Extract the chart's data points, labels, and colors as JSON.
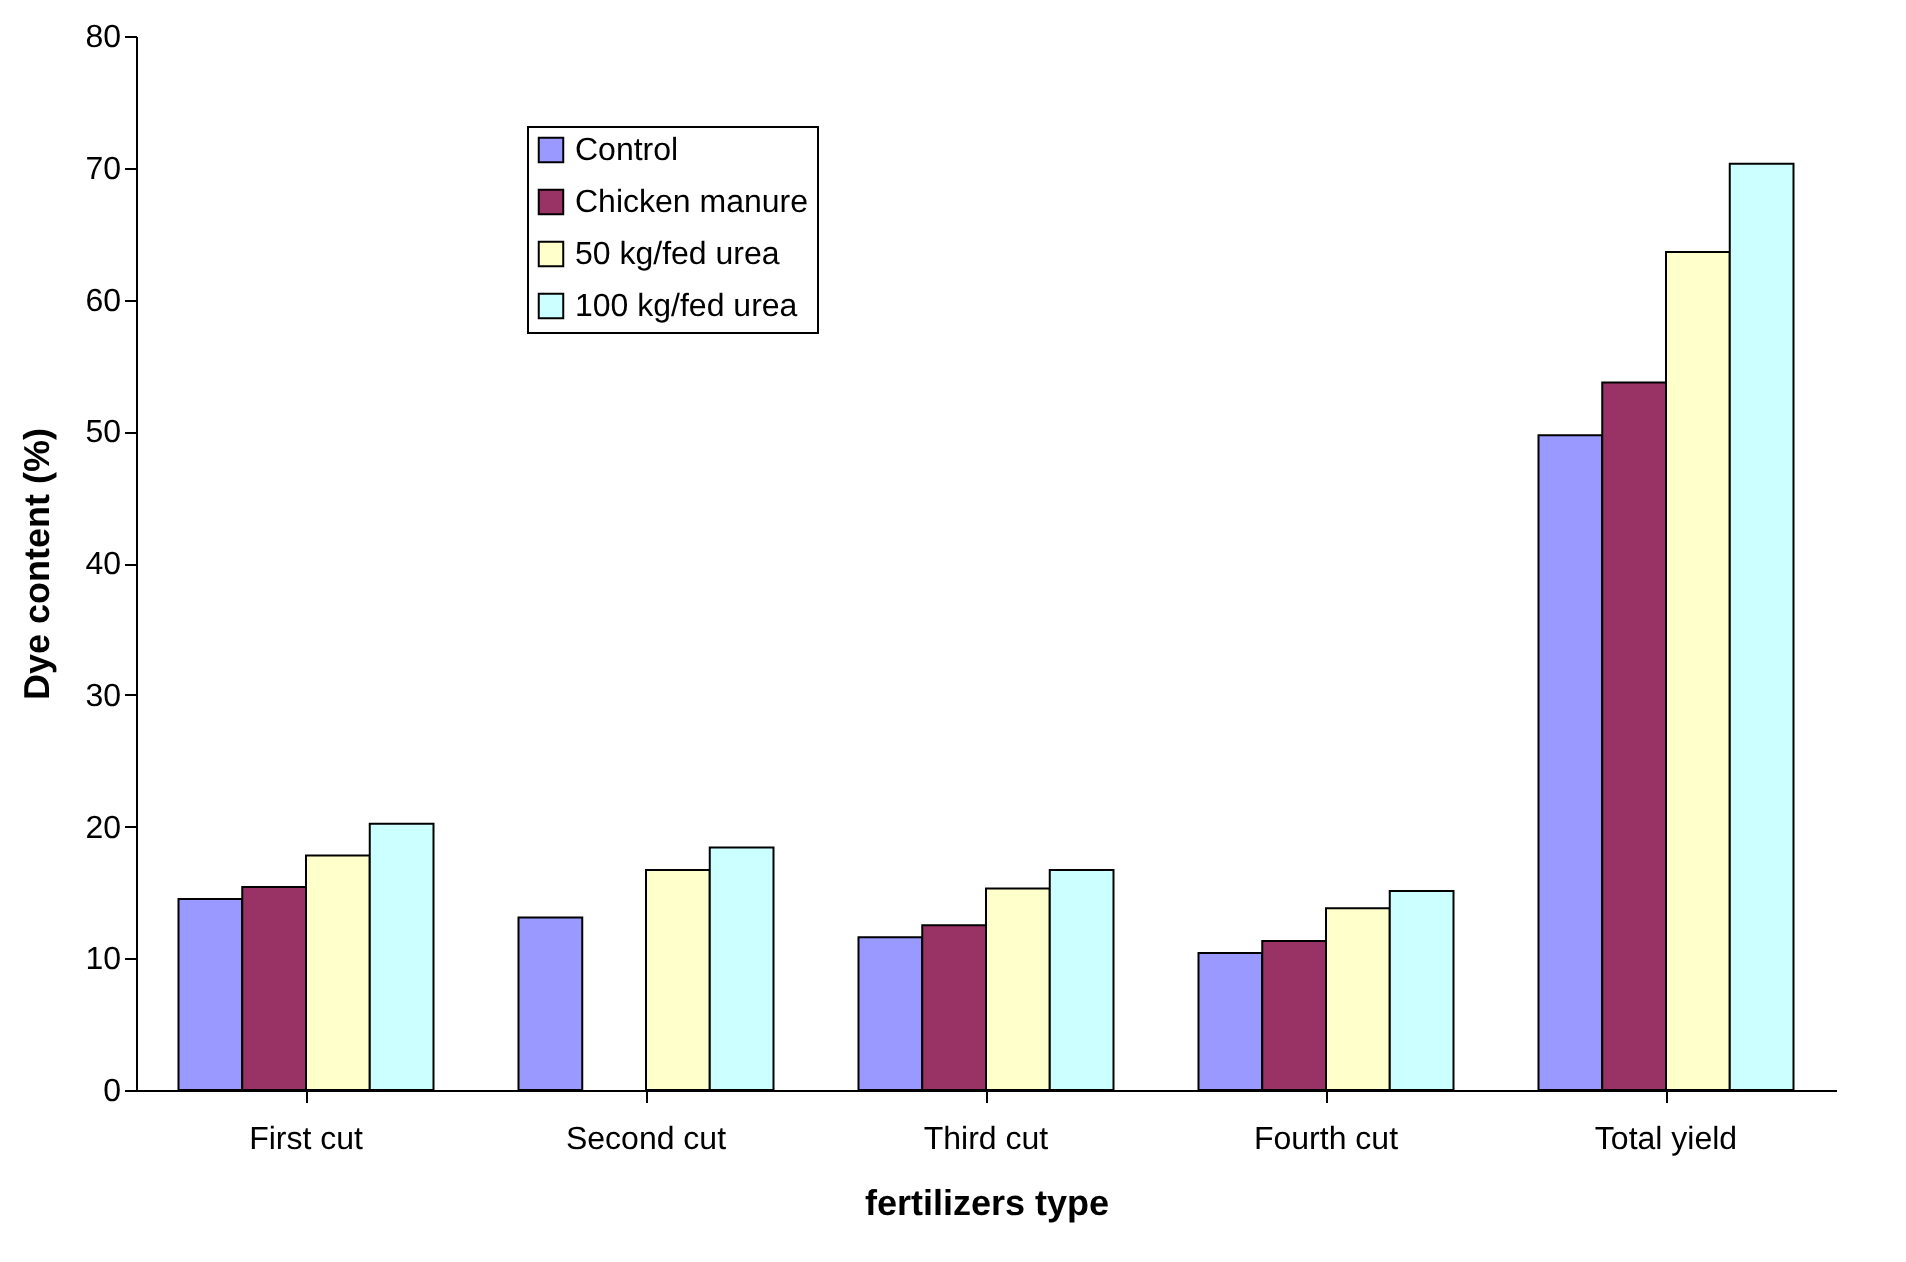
{
  "chart_data": {
    "type": "bar",
    "xlabel": "fertilizers type",
    "ylabel": "Dye content (%)",
    "categories": [
      "First cut",
      "Second cut",
      "Third cut",
      "Fourth cut",
      "Total yield"
    ],
    "series": [
      {
        "name": "Control",
        "color": "#9999ff",
        "values": [
          14.5,
          13.1,
          11.6,
          10.4,
          49.7
        ]
      },
      {
        "name": "Chicken manure",
        "color": "#993366",
        "values": [
          15.4,
          null,
          12.5,
          11.3,
          53.7
        ]
      },
      {
        "name": "50 kg/fed urea",
        "color": "#ffffcc",
        "values": [
          17.8,
          16.7,
          15.3,
          13.8,
          63.6
        ]
      },
      {
        "name": "100 kg/fed urea",
        "color": "#ccffff",
        "values": [
          20.2,
          18.4,
          16.7,
          15.1,
          70.3
        ]
      }
    ],
    "ylim": [
      0,
      80
    ],
    "yticks": [
      0,
      10,
      20,
      30,
      40,
      50,
      60,
      70,
      80
    ],
    "grid": false,
    "legend": "top left"
  }
}
